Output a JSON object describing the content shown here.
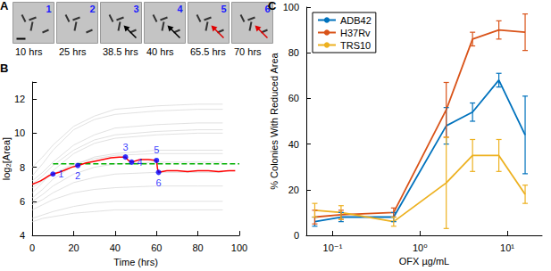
{
  "image_panel": {
    "title": "A",
    "frames": [
      {
        "label": "1",
        "time": "10 hrs"
      },
      {
        "label": "2",
        "time": "25 hrs"
      },
      {
        "label": "3",
        "time": "38.5 hrs"
      },
      {
        "label": "4",
        "time": "40 hrs"
      },
      {
        "label": "5",
        "time": "65.5 hrs"
      },
      {
        "label": "6",
        "time": "70 hrs"
      }
    ]
  },
  "chart_data": [
    {
      "type": "line",
      "title": "B",
      "x_label": "Time (hrs)",
      "y_label": "log₂[Area]",
      "xlim": [
        0,
        100
      ],
      "xticks": [
        0,
        20,
        40,
        60,
        80,
        100
      ],
      "ylim": [
        4,
        13
      ],
      "yticks": [
        4,
        6,
        8,
        10,
        12
      ],
      "grid": false,
      "series": [
        {
          "color": "#d9d9d9",
          "x": [
            0,
            5,
            10,
            20,
            30,
            40,
            60,
            80,
            92
          ],
          "values": [
            6.0,
            6.4,
            6.9,
            7.6,
            8.0,
            8.2,
            8.3,
            8.3,
            8.3
          ]
        },
        {
          "color": "#d9d9d9",
          "x": [
            0,
            5,
            10,
            20,
            30,
            40,
            60,
            80,
            92
          ],
          "values": [
            7.0,
            7.5,
            8.1,
            9.0,
            9.6,
            9.9,
            10.1,
            10.2,
            10.2
          ]
        },
        {
          "color": "#d9d9d9",
          "x": [
            0,
            5,
            10,
            20,
            30,
            40,
            60,
            80,
            92
          ],
          "values": [
            5.5,
            5.8,
            6.1,
            6.5,
            6.7,
            6.8,
            6.9,
            6.9,
            6.9
          ]
        },
        {
          "color": "#d9d9d9",
          "x": [
            0,
            5,
            10,
            20,
            30,
            40,
            60,
            80,
            92
          ],
          "values": [
            6.5,
            7.1,
            7.8,
            8.8,
            9.4,
            9.7,
            9.9,
            10.0,
            10.0
          ]
        },
        {
          "color": "#d9d9d9",
          "x": [
            0,
            5,
            10,
            20,
            30,
            40,
            60,
            80,
            92
          ],
          "values": [
            7.5,
            8.2,
            9.0,
            10.2,
            10.8,
            11.1,
            11.3,
            11.4,
            11.4
          ]
        },
        {
          "color": "#d9d9d9",
          "x": [
            0,
            5,
            10,
            20,
            30,
            40,
            60,
            80,
            92
          ],
          "values": [
            5.0,
            5.2,
            5.4,
            5.7,
            5.9,
            6.0,
            6.0,
            6.0,
            6.0
          ]
        },
        {
          "color": "#d9d9d9",
          "x": [
            0,
            5,
            10,
            20,
            30,
            40,
            60,
            80,
            92
          ],
          "values": [
            6.2,
            6.7,
            7.3,
            8.1,
            8.6,
            8.8,
            9.0,
            9.0,
            9.0
          ]
        },
        {
          "color": "#d9d9d9",
          "x": [
            0,
            5,
            10,
            20,
            30,
            40,
            60,
            80,
            92
          ],
          "values": [
            4.8,
            5.0,
            5.1,
            5.3,
            5.4,
            5.5,
            5.5,
            5.5,
            5.5
          ]
        },
        {
          "color": "#d9d9d9",
          "x": [
            0,
            5,
            10,
            20,
            30,
            40,
            60,
            80,
            92
          ],
          "values": [
            6.8,
            7.2,
            7.6,
            8.2,
            8.5,
            8.7,
            8.8,
            8.8,
            8.8
          ]
        },
        {
          "color": "#d9d9d9",
          "x": [
            0,
            5,
            10,
            20,
            30,
            40,
            60,
            80,
            92
          ],
          "values": [
            8.0,
            8.6,
            9.3,
            10.4,
            11.0,
            11.4,
            11.6,
            11.7,
            11.7
          ]
        },
        {
          "color": "#d9d9d9",
          "x": [
            0,
            5,
            10,
            20,
            30,
            40,
            60,
            80,
            92
          ],
          "values": [
            5.8,
            6.1,
            6.5,
            7.1,
            7.4,
            7.6,
            7.7,
            7.7,
            7.7
          ]
        },
        {
          "color": "#d9d9d9",
          "x": [
            0,
            5,
            10,
            20,
            30,
            40,
            60,
            80,
            92
          ],
          "values": [
            7.2,
            7.7,
            8.3,
            9.3,
            9.9,
            10.3,
            10.5,
            10.6,
            10.6
          ]
        },
        {
          "color": "#00b000",
          "line_style": "dashed",
          "x": [
            10,
            100
          ],
          "values": [
            8.2,
            8.2
          ]
        },
        {
          "color": "#ff0000",
          "x": [
            0,
            2,
            4,
            6,
            8,
            10,
            13,
            16,
            19,
            22,
            26,
            30,
            34,
            38,
            42,
            45,
            46,
            47,
            48,
            52,
            56,
            60,
            60.5,
            61,
            65,
            70,
            75,
            80,
            85,
            90,
            95,
            98
          ],
          "values": [
            7.0,
            7.1,
            7.2,
            7.35,
            7.5,
            7.6,
            7.7,
            7.85,
            8.0,
            8.1,
            8.25,
            8.35,
            8.45,
            8.55,
            8.6,
            8.6,
            8.45,
            8.35,
            8.3,
            8.45,
            8.45,
            8.4,
            7.9,
            7.7,
            7.8,
            7.8,
            7.75,
            7.8,
            7.8,
            7.75,
            7.8,
            7.8
          ]
        }
      ],
      "annotations": [
        {
          "x": 10,
          "y": 7.6,
          "label": "1",
          "color": "#0000ff"
        },
        {
          "x": 22,
          "y": 8.1,
          "label": "2",
          "color": "#0000ff"
        },
        {
          "x": 45,
          "y": 8.6,
          "label": "3",
          "color": "#0000ff"
        },
        {
          "x": 48,
          "y": 8.3,
          "label": "4",
          "color": "#0000ff"
        },
        {
          "x": 60,
          "y": 8.4,
          "label": "5",
          "color": "#0000ff"
        },
        {
          "x": 61,
          "y": 7.7,
          "label": "6",
          "color": "#0000ff"
        }
      ]
    },
    {
      "type": "line",
      "title": "C",
      "x_label": "OFX µg/mL",
      "y_label": "% Colonies With Reduced Area",
      "log": "x",
      "x": [
        0.0625,
        0.125,
        0.5,
        2,
        4,
        8,
        16
      ],
      "xlim": [
        0.05,
        25
      ],
      "xticks": [
        {
          "value": 0.1,
          "label": "10⁻¹"
        },
        {
          "value": 1,
          "label": "10⁰"
        },
        {
          "value": 10,
          "label": "10¹"
        }
      ],
      "ylim": [
        0,
        100
      ],
      "yticks": [
        0,
        20,
        40,
        60,
        80,
        100
      ],
      "grid": false,
      "legend": "upper left",
      "series": [
        {
          "name": "ADB42",
          "color": "#0072bd",
          "values": [
            6,
            8,
            8,
            48,
            54,
            68,
            44
          ],
          "errors": [
            2,
            2,
            2,
            8,
            4,
            3,
            17
          ]
        },
        {
          "name": "H37Rv",
          "color": "#d95319",
          "values": [
            8,
            9,
            10,
            55,
            86,
            90,
            89
          ],
          "errors": [
            3,
            2,
            2,
            12,
            3,
            4,
            8
          ]
        },
        {
          "name": "TRS10",
          "color": "#edb120",
          "values": [
            11,
            10,
            6,
            23,
            35,
            35,
            18
          ],
          "errors": [
            3,
            3,
            2,
            20,
            7,
            7,
            4
          ]
        }
      ]
    }
  ]
}
